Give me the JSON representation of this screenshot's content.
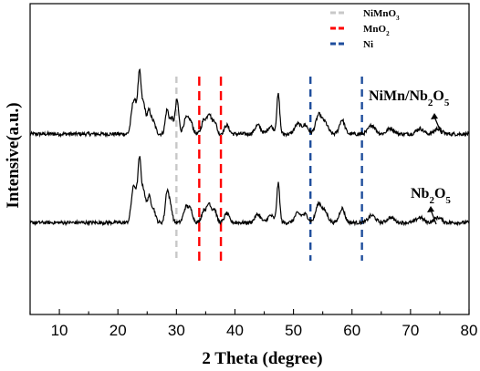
{
  "chart_data": {
    "type": "line",
    "xlabel": "2 Theta (degree)",
    "ylabel": "Intensive(a.u.)",
    "xlim": [
      5,
      80
    ],
    "x_ticks": [
      10,
      20,
      30,
      40,
      50,
      60,
      70,
      80
    ],
    "x_tick_labels": [
      "10",
      "20",
      "30",
      "40",
      "50",
      "60",
      "70",
      "80"
    ],
    "y_ticks_shown": false,
    "grid": false,
    "series": [
      {
        "name": "NiMn/Nb2O5",
        "label_parts": [
          [
            "NiMn/Nb",
            ""
          ],
          [
            "2",
            "sub"
          ],
          [
            "O",
            ""
          ],
          [
            "5",
            "sub"
          ]
        ],
        "color": "#000000",
        "baseline": 0.25,
        "peaks": [
          {
            "x": 22.6,
            "h": 2.6,
            "w": 0.35
          },
          {
            "x": 23.1,
            "h": 1.5,
            "w": 0.3
          },
          {
            "x": 23.7,
            "h": 5.4,
            "w": 0.28
          },
          {
            "x": 24.4,
            "h": 2.6,
            "w": 0.3
          },
          {
            "x": 25.3,
            "h": 2.1,
            "w": 0.35
          },
          {
            "x": 26.1,
            "h": 1.0,
            "w": 0.35
          },
          {
            "x": 28.4,
            "h": 2.2,
            "w": 0.3
          },
          {
            "x": 29.2,
            "h": 1.4,
            "w": 0.3
          },
          {
            "x": 30.1,
            "h": 3.1,
            "w": 0.3
          },
          {
            "x": 31.6,
            "h": 1.3,
            "w": 0.4
          },
          {
            "x": 32.4,
            "h": 1.1,
            "w": 0.4
          },
          {
            "x": 34.7,
            "h": 1.3,
            "w": 0.4
          },
          {
            "x": 35.6,
            "h": 1.8,
            "w": 0.35
          },
          {
            "x": 36.5,
            "h": 1.2,
            "w": 0.35
          },
          {
            "x": 38.6,
            "h": 0.8,
            "w": 0.4
          },
          {
            "x": 43.9,
            "h": 0.8,
            "w": 0.5
          },
          {
            "x": 46.1,
            "h": 0.7,
            "w": 0.5
          },
          {
            "x": 47.4,
            "h": 3.6,
            "w": 0.25
          },
          {
            "x": 50.7,
            "h": 0.9,
            "w": 0.5
          },
          {
            "x": 52.0,
            "h": 0.8,
            "w": 0.5
          },
          {
            "x": 54.3,
            "h": 1.7,
            "w": 0.5
          },
          {
            "x": 55.4,
            "h": 1.0,
            "w": 0.5
          },
          {
            "x": 58.3,
            "h": 1.3,
            "w": 0.45
          },
          {
            "x": 63.4,
            "h": 0.8,
            "w": 0.6
          },
          {
            "x": 66.6,
            "h": 0.5,
            "w": 0.6
          },
          {
            "x": 71.6,
            "h": 0.5,
            "w": 0.6
          },
          {
            "x": 74.7,
            "h": 0.5,
            "w": 0.6
          }
        ]
      },
      {
        "name": "Nb2O5",
        "label_parts": [
          [
            "Nb",
            ""
          ],
          [
            "2",
            "sub"
          ],
          [
            "O",
            ""
          ],
          [
            "5",
            "sub"
          ]
        ],
        "color": "#000000",
        "baseline": 0.25,
        "peaks": [
          {
            "x": 22.6,
            "h": 3.0,
            "w": 0.35
          },
          {
            "x": 23.1,
            "h": 1.7,
            "w": 0.3
          },
          {
            "x": 23.7,
            "h": 6.0,
            "w": 0.28
          },
          {
            "x": 24.4,
            "h": 3.0,
            "w": 0.3
          },
          {
            "x": 25.3,
            "h": 2.5,
            "w": 0.35
          },
          {
            "x": 26.1,
            "h": 1.2,
            "w": 0.35
          },
          {
            "x": 28.4,
            "h": 3.0,
            "w": 0.3
          },
          {
            "x": 29.0,
            "h": 1.5,
            "w": 0.3
          },
          {
            "x": 31.6,
            "h": 1.4,
            "w": 0.4
          },
          {
            "x": 32.4,
            "h": 1.2,
            "w": 0.4
          },
          {
            "x": 34.7,
            "h": 1.2,
            "w": 0.4
          },
          {
            "x": 35.6,
            "h": 1.8,
            "w": 0.35
          },
          {
            "x": 36.5,
            "h": 1.3,
            "w": 0.35
          },
          {
            "x": 38.6,
            "h": 0.9,
            "w": 0.4
          },
          {
            "x": 43.9,
            "h": 0.8,
            "w": 0.5
          },
          {
            "x": 46.1,
            "h": 0.7,
            "w": 0.5
          },
          {
            "x": 47.4,
            "h": 3.8,
            "w": 0.25
          },
          {
            "x": 50.7,
            "h": 0.9,
            "w": 0.5
          },
          {
            "x": 52.0,
            "h": 0.8,
            "w": 0.5
          },
          {
            "x": 54.3,
            "h": 1.8,
            "w": 0.5
          },
          {
            "x": 55.4,
            "h": 1.0,
            "w": 0.5
          },
          {
            "x": 58.3,
            "h": 1.4,
            "w": 0.45
          },
          {
            "x": 63.4,
            "h": 0.7,
            "w": 0.6
          },
          {
            "x": 66.6,
            "h": 0.5,
            "w": 0.6
          },
          {
            "x": 71.6,
            "h": 0.5,
            "w": 0.6
          },
          {
            "x": 74.7,
            "h": 0.5,
            "w": 0.6
          }
        ]
      }
    ],
    "reference_lines": [
      {
        "name": "NiMnO3",
        "label_parts": [
          [
            "NiMnO",
            ""
          ],
          [
            "3",
            "sub"
          ]
        ],
        "color": "#c8c8c8",
        "positions": [
          30.0
        ]
      },
      {
        "name": "MnO2",
        "label_parts": [
          [
            "MnO",
            ""
          ],
          [
            "2",
            "sub"
          ]
        ],
        "color": "#ff0000",
        "positions": [
          33.9,
          37.6
        ]
      },
      {
        "name": "Ni",
        "label_parts": [
          [
            "Ni",
            ""
          ]
        ],
        "color": "#1f4e9c",
        "positions": [
          52.9,
          61.7
        ]
      }
    ],
    "legend_position": "top-center"
  }
}
